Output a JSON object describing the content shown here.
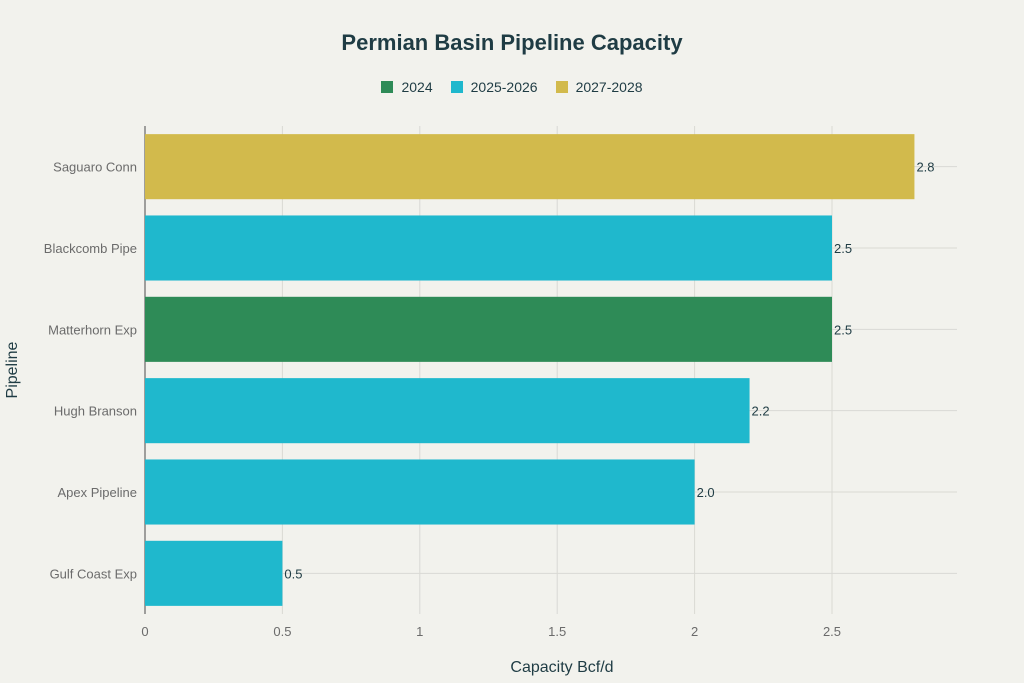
{
  "chart_data": {
    "type": "bar",
    "orientation": "horizontal",
    "title": "Permian Basin Pipeline Capacity",
    "xlabel": "Capacity Bcf/d",
    "ylabel": "Pipeline",
    "xlim": [
      0,
      2.95
    ],
    "xticks": [
      "0",
      "0.5",
      "1",
      "1.5",
      "2",
      "2.5"
    ],
    "xtick_values": [
      0,
      0.5,
      1,
      1.5,
      2,
      2.5
    ],
    "grid": true,
    "legend_position": "top-center",
    "series": [
      {
        "name": "2024",
        "color": "#2e8b57"
      },
      {
        "name": "2025-2026",
        "color": "#1fb8cd"
      },
      {
        "name": "2027-2028",
        "color": "#d2ba4c"
      }
    ],
    "bars": [
      {
        "category": "Saguaro Conn",
        "value": 2.8,
        "label": "2.8",
        "series": "2027-2028"
      },
      {
        "category": "Blackcomb Pipe",
        "value": 2.5,
        "label": "2.5",
        "series": "2025-2026"
      },
      {
        "category": "Matterhorn Exp",
        "value": 2.5,
        "label": "2.5",
        "series": "2024"
      },
      {
        "category": "Hugh Branson",
        "value": 2.2,
        "label": "2.2",
        "series": "2025-2026"
      },
      {
        "category": "Apex Pipeline",
        "value": 2.0,
        "label": "2.0",
        "series": "2025-2026"
      },
      {
        "category": "Gulf Coast Exp",
        "value": 0.5,
        "label": "0.5",
        "series": "2025-2026"
      }
    ]
  }
}
